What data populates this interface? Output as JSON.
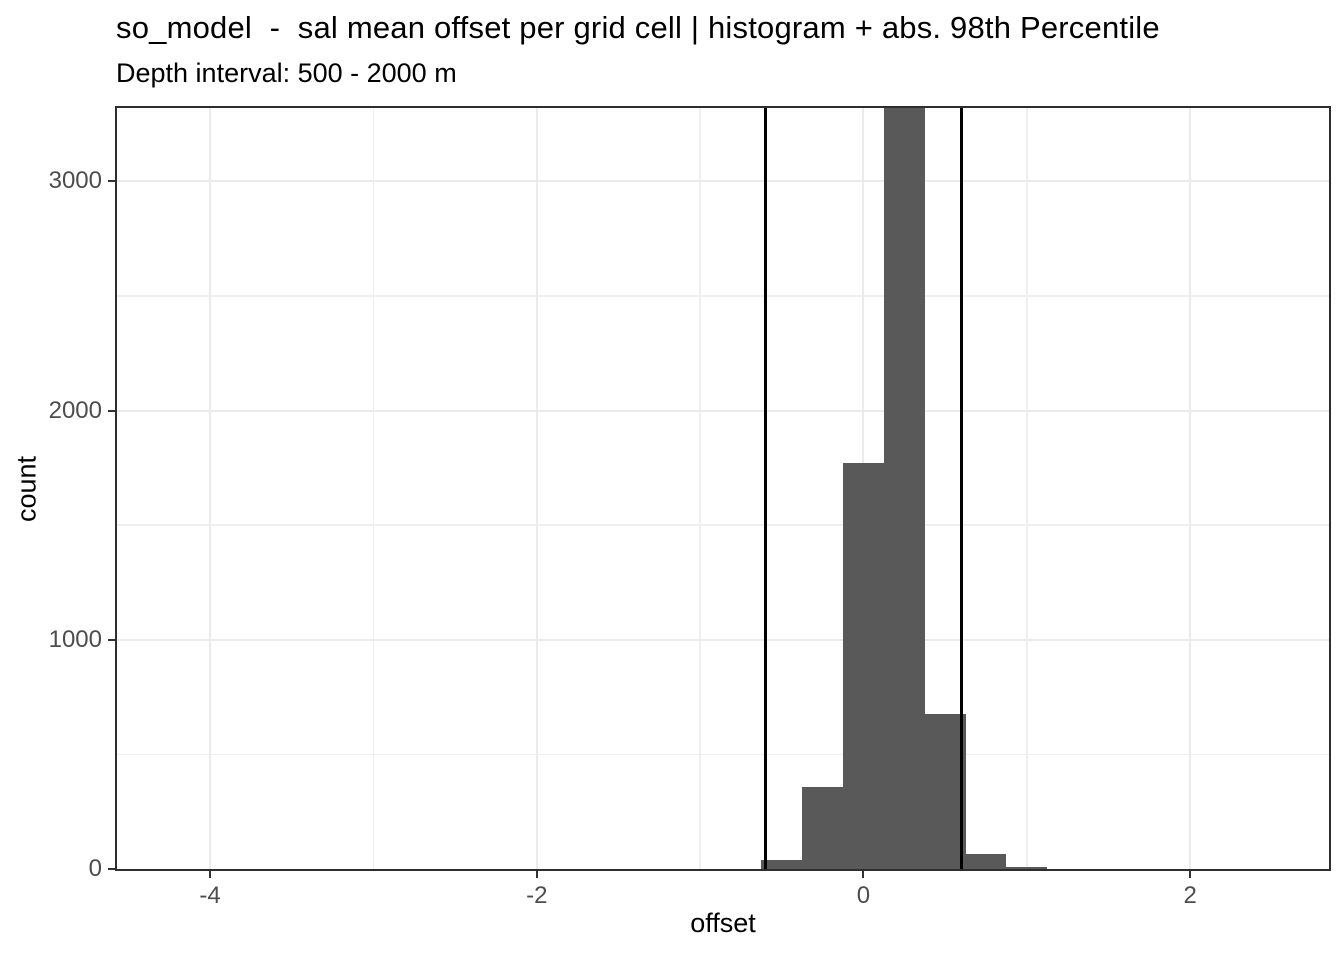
{
  "chart_data": {
    "type": "bar",
    "subtype": "histogram",
    "title": "so_model  -  sal mean offset per grid cell | histogram + abs. 98th Percentile",
    "subtitle": "Depth interval: 500 - 2000 m",
    "xlabel": "offset",
    "ylabel": "count",
    "legend": "none",
    "grid": "major+minor",
    "x_axis": {
      "ticks": [
        -4,
        -2,
        0,
        2
      ],
      "minor_ticks": [
        -3,
        -1,
        1
      ],
      "range": [
        -4.57,
        2.85
      ]
    },
    "y_axis": {
      "ticks": [
        0,
        1000,
        2000,
        3000
      ],
      "minor_ticks": [
        500,
        1500,
        2500
      ],
      "range": [
        0,
        3320
      ]
    },
    "bin_width": 0.25,
    "bins": [
      {
        "center": -0.5,
        "count": 40
      },
      {
        "center": -0.25,
        "count": 356
      },
      {
        "center": 0,
        "count": 1772
      },
      {
        "center": 0.25,
        "count": 3400,
        "clipped_at_plot_top": true
      },
      {
        "center": 0.5,
        "count": 677
      },
      {
        "center": 0.75,
        "count": 65
      },
      {
        "center": 1,
        "count": 10
      }
    ],
    "vlines": {
      "label": "abs. 98th Percentile",
      "values": [
        -0.6,
        0.6
      ]
    },
    "colors": {
      "bar_fill": "#595959",
      "vline": "#000000",
      "panel_border": "#2e2e2e",
      "grid_major": "#ebebeb",
      "grid_minor": "#efefef",
      "tick_label": "#4d4d4d",
      "text": "#000000",
      "background": "#ffffff"
    }
  }
}
